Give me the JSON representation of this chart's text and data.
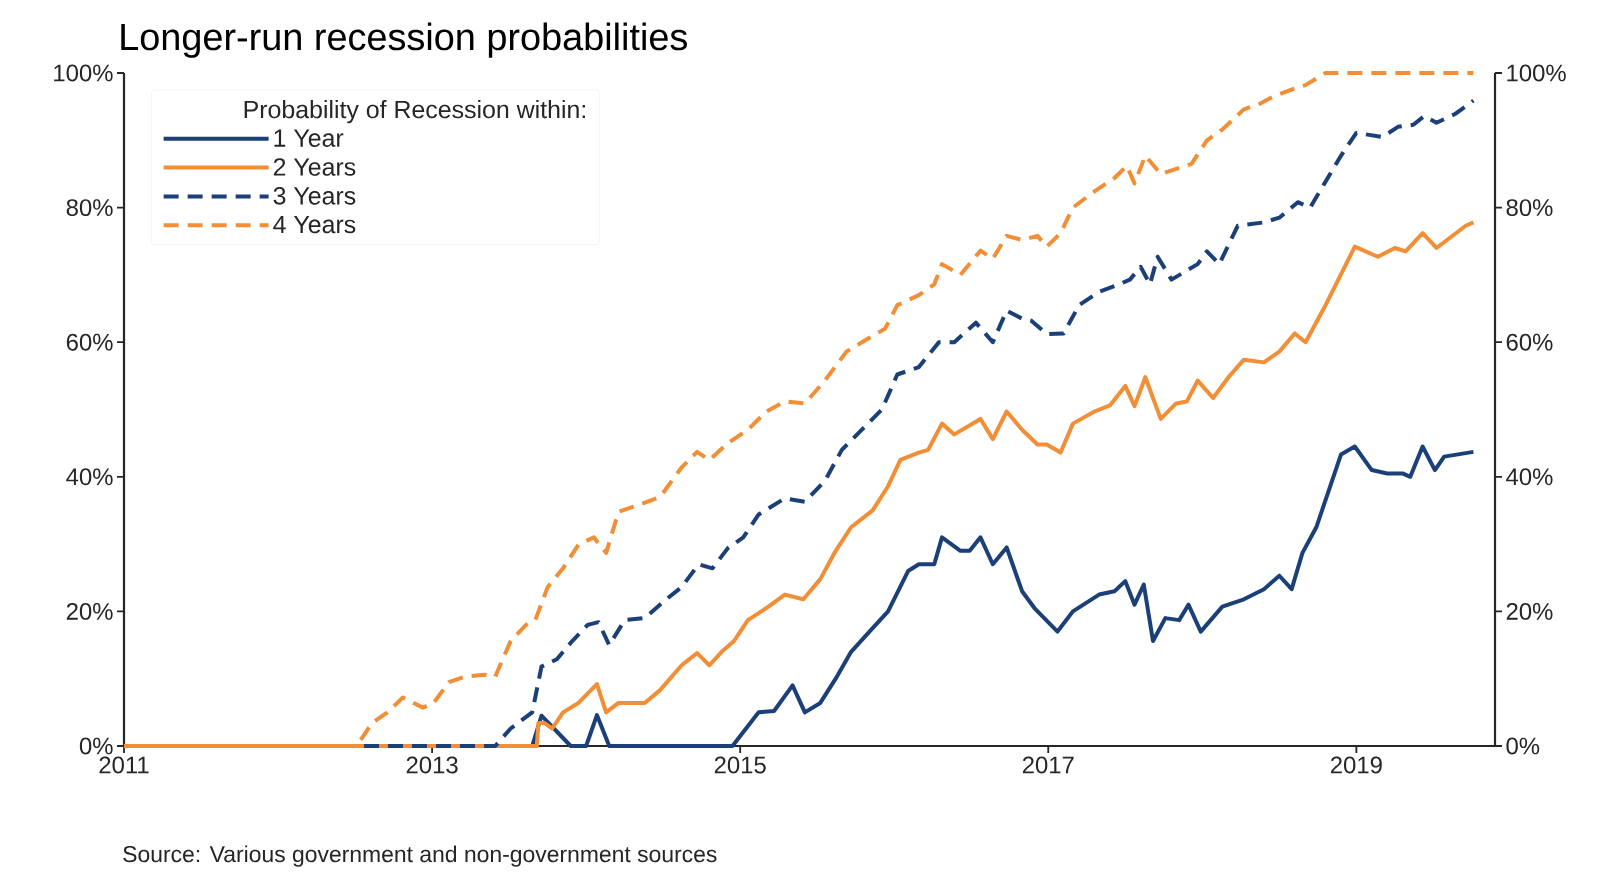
{
  "chart_data": {
    "type": "line",
    "title": "Longer-run recession probabilities",
    "annotations": [
      "Source: Various government and non-government sources"
    ],
    "legend_title": "Probability of Recession within:",
    "legend": "top left",
    "marker": "none",
    "grid": false,
    "xlim": [
      2011,
      2019.9
    ],
    "xticks": [
      2011,
      2013,
      2015,
      2017,
      2019
    ],
    "ylim": [
      0,
      100
    ],
    "yticks": [
      {
        "value": 0,
        "label": "0%"
      },
      {
        "value": 20,
        "label": "20%"
      },
      {
        "value": 40,
        "label": "40%"
      },
      {
        "value": 60,
        "label": "60%"
      },
      {
        "value": 80,
        "label": "80%"
      },
      {
        "value": 100,
        "label": "100%"
      }
    ],
    "y2lim": [
      0,
      100
    ],
    "y2ticks": [
      {
        "value": 0,
        "label": "0%"
      },
      {
        "value": 20,
        "label": "20%"
      },
      {
        "value": 40,
        "label": "40%"
      },
      {
        "value": 60,
        "label": "60%"
      },
      {
        "value": 80,
        "label": "80%"
      },
      {
        "value": 100,
        "label": "100%"
      }
    ],
    "series": [
      {
        "name": "1 Year",
        "color": "#1b3f78",
        "line_style": "solid",
        "x": [
          2011,
          2013.65,
          2013.71,
          2013.9,
          2014.0,
          2014.07,
          2014.15,
          2014.95,
          2015.12,
          2015.22,
          2015.34,
          2015.42,
          2015.52,
          2015.62,
          2015.72,
          2015.86,
          2015.96,
          2016.09,
          2016.16,
          2016.26,
          2016.31,
          2016.43,
          2016.49,
          2016.56,
          2016.64,
          2016.73,
          2016.83,
          2016.91,
          2017.06,
          2017.16,
          2017.33,
          2017.43,
          2017.5,
          2017.56,
          2017.62,
          2017.68,
          2017.76,
          2017.85,
          2017.91,
          2017.99,
          2018.13,
          2018.27,
          2018.4,
          2018.5,
          2018.58,
          2018.65,
          2018.74,
          2018.9,
          2018.99,
          2019.1,
          2019.2,
          2019.3,
          2019.35,
          2019.43,
          2019.51,
          2019.57,
          2019.76
        ],
        "values": [
          0,
          0,
          4.5,
          0,
          0,
          4.6,
          0,
          0,
          5,
          5.2,
          9,
          5,
          6.4,
          10,
          14,
          17.5,
          20,
          26,
          27,
          27,
          31,
          29,
          29,
          31,
          27,
          29.5,
          23,
          20.5,
          17,
          20,
          22.5,
          23,
          24.5,
          21,
          24,
          15.6,
          19,
          18.7,
          21,
          17,
          20.7,
          21.8,
          23.3,
          25.3,
          23.3,
          28.7,
          32.5,
          43.3,
          44.5,
          41,
          40.5,
          40.5,
          40,
          44.5,
          41,
          43,
          43.7
        ]
      },
      {
        "name": "2 Years",
        "color": "#f28e35",
        "line_style": "solid",
        "x": [
          2011,
          2013.68,
          2013.69,
          2013.73,
          2013.78,
          2013.85,
          2013.95,
          2014.07,
          2014.13,
          2014.21,
          2014.38,
          2014.48,
          2014.62,
          2014.72,
          2014.8,
          2014.88,
          2014.96,
          2015.05,
          2015.17,
          2015.29,
          2015.41,
          2015.52,
          2015.62,
          2015.72,
          2015.86,
          2015.96,
          2016.04,
          2016.16,
          2016.22,
          2016.31,
          2016.39,
          2016.56,
          2016.64,
          2016.73,
          2016.83,
          2016.93,
          2016.99,
          2017.08,
          2017.16,
          2017.3,
          2017.4,
          2017.5,
          2017.56,
          2017.63,
          2017.73,
          2017.83,
          2017.9,
          2017.97,
          2018.07,
          2018.17,
          2018.27,
          2018.4,
          2018.5,
          2018.6,
          2018.67,
          2018.8,
          2018.99,
          2019.14,
          2019.25,
          2019.32,
          2019.43,
          2019.52,
          2019.71,
          2019.76
        ],
        "values": [
          0,
          0,
          3.4,
          3.4,
          2.6,
          5,
          6.4,
          9.2,
          5,
          6.4,
          6.4,
          8.3,
          12,
          13.8,
          12,
          14,
          15.6,
          18.7,
          20.5,
          22.5,
          21.8,
          24.8,
          29,
          32.5,
          35,
          38.6,
          42.5,
          43.6,
          44,
          47.9,
          46.3,
          48.6,
          45.6,
          49.7,
          47,
          44.8,
          44.8,
          43.6,
          47.9,
          49.7,
          50.6,
          53.5,
          50.5,
          54.8,
          48.6,
          50.9,
          51.2,
          54.3,
          51.7,
          54.8,
          57.4,
          57,
          58.6,
          61.3,
          60,
          65.5,
          74.2,
          72.7,
          74,
          73.5,
          76.2,
          74,
          77.3,
          77.8
        ]
      },
      {
        "name": "3 Years",
        "color": "#1b3f78",
        "line_style": "dashed",
        "x": [
          2011,
          2013.41,
          2013.51,
          2013.65,
          2013.71,
          2013.81,
          2013.91,
          2014.01,
          2014.08,
          2014.15,
          2014.25,
          2014.38,
          2014.52,
          2014.62,
          2014.73,
          2014.82,
          2014.92,
          2015.02,
          2015.12,
          2015.29,
          2015.42,
          2015.55,
          2015.66,
          2015.79,
          2015.92,
          2016.02,
          2016.16,
          2016.29,
          2016.39,
          2016.53,
          2016.64,
          2016.73,
          2016.83,
          2016.89,
          2016.99,
          2017.1,
          2017.2,
          2017.33,
          2017.46,
          2017.53,
          2017.6,
          2017.66,
          2017.71,
          2017.8,
          2017.97,
          2018.03,
          2018.11,
          2018.23,
          2018.4,
          2018.5,
          2018.62,
          2018.7,
          2018.9,
          2019.0,
          2019.17,
          2019.27,
          2019.37,
          2019.44,
          2019.52,
          2019.64,
          2019.76
        ],
        "values": [
          0,
          0,
          2.6,
          5,
          11.8,
          12.9,
          15.6,
          18,
          18.4,
          15,
          18.7,
          19,
          21.8,
          23.6,
          27,
          26.4,
          29.4,
          31,
          34.4,
          36.8,
          36.3,
          39.4,
          44,
          47,
          50,
          55.2,
          56.3,
          60,
          60,
          62.9,
          60,
          64.7,
          63.5,
          63.2,
          61.2,
          61.3,
          65.5,
          67.5,
          68.6,
          69.3,
          71.2,
          68.6,
          72.7,
          69.3,
          71.6,
          73.5,
          71.6,
          77.3,
          77.8,
          78.5,
          80.8,
          80,
          87.7,
          91.1,
          90.5,
          92,
          92.3,
          93.6,
          92.6,
          93.9,
          95.9
        ]
      },
      {
        "name": "4 Years",
        "color": "#f28e35",
        "line_style": "dashed",
        "x": [
          2011,
          2012.51,
          2012.61,
          2012.71,
          2012.81,
          2012.94,
          2013.01,
          2013.11,
          2013.21,
          2013.34,
          2013.41,
          2013.51,
          2013.61,
          2013.67,
          2013.75,
          2013.85,
          2013.95,
          2014.05,
          2014.13,
          2014.21,
          2014.35,
          2014.48,
          2014.62,
          2014.72,
          2014.8,
          2014.92,
          2015.05,
          2015.17,
          2015.29,
          2015.42,
          2015.55,
          2015.69,
          2015.82,
          2015.94,
          2016.02,
          2016.16,
          2016.26,
          2016.31,
          2016.43,
          2016.56,
          2016.64,
          2016.73,
          2016.83,
          2016.93,
          2016.99,
          2017.08,
          2017.16,
          2017.3,
          2017.43,
          2017.51,
          2017.56,
          2017.63,
          2017.73,
          2017.93,
          2018.03,
          2018.13,
          2018.27,
          2018.37,
          2018.47,
          2018.6,
          2018.67,
          2018.8,
          2019.76
        ],
        "values": [
          0,
          0,
          3.4,
          5,
          7.2,
          5.7,
          6.4,
          9.5,
          10.3,
          10.6,
          10.3,
          15.6,
          18,
          18.7,
          23.6,
          26.4,
          29.9,
          31,
          28.7,
          34.8,
          35.9,
          37,
          41.4,
          43.7,
          42.5,
          45,
          47,
          49.7,
          51.2,
          50.9,
          54.3,
          58.6,
          60.4,
          62,
          65.5,
          67,
          68.6,
          71.6,
          70,
          73.6,
          72.4,
          75.8,
          75.2,
          75.8,
          74.2,
          76.2,
          80,
          82.4,
          84.4,
          86.2,
          83.6,
          87.7,
          85,
          86.5,
          90,
          91.6,
          94.6,
          95.4,
          96.6,
          97.7,
          98.2,
          100,
          100
        ]
      }
    ]
  }
}
